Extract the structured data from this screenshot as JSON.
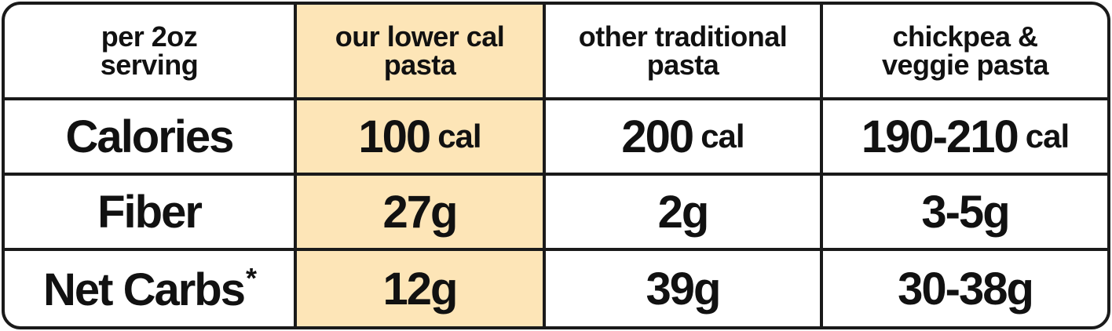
{
  "table": {
    "header": [
      [
        "per 2oz",
        "serving"
      ],
      [
        "our lower cal",
        "pasta"
      ],
      [
        "other traditional",
        "pasta"
      ],
      [
        "chickpea &",
        "veggie pasta"
      ]
    ],
    "rows": [
      {
        "label": "Calories",
        "cells": [
          {
            "value": "100",
            "unit": "cal"
          },
          {
            "value": "200",
            "unit": "cal"
          },
          {
            "value": "190-210",
            "unit": "cal"
          }
        ]
      },
      {
        "label": "Fiber",
        "cells": [
          {
            "value": "27g"
          },
          {
            "value": "2g"
          },
          {
            "value": "3-5g"
          }
        ]
      },
      {
        "label": "Net Carbs",
        "note_mark": "*",
        "cells": [
          {
            "value": "12g"
          },
          {
            "value": "39g"
          },
          {
            "value": "30-38g"
          }
        ]
      }
    ]
  }
}
